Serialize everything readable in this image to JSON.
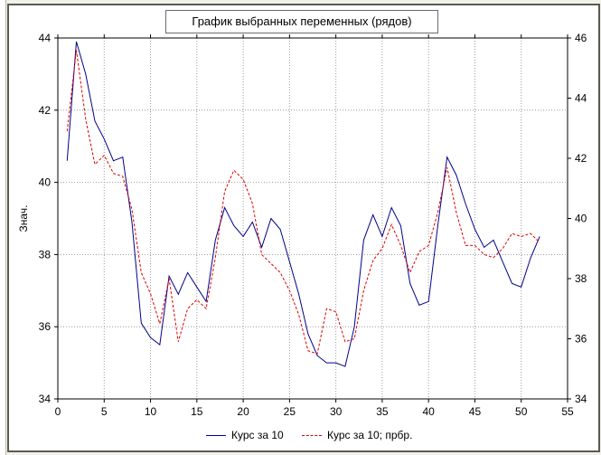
{
  "chart_data": {
    "type": "line",
    "title": "График выбранных переменных (рядов)",
    "ylabel": "Знач.",
    "xlabel": "",
    "xlim": [
      0,
      55
    ],
    "xticks": [
      0,
      5,
      10,
      15,
      20,
      25,
      30,
      35,
      40,
      45,
      50,
      55
    ],
    "ylim_left": [
      34,
      44
    ],
    "yticks_left": [
      34,
      36,
      38,
      40,
      42,
      44
    ],
    "ylim_right": [
      34,
      46
    ],
    "yticks_right": [
      34,
      36,
      38,
      40,
      42,
      44,
      46
    ],
    "grid": true,
    "legend_position": "bottom",
    "series": [
      {
        "name": "Курс за 10",
        "axis": "left",
        "color": "#00008b",
        "style": "solid",
        "x": [
          1,
          2,
          3,
          4,
          5,
          6,
          7,
          8,
          9,
          10,
          11,
          12,
          13,
          14,
          15,
          16,
          17,
          18,
          19,
          20,
          21,
          22,
          23,
          24,
          25,
          26,
          27,
          28,
          29,
          30,
          31,
          32,
          33,
          34,
          35,
          36,
          37,
          38,
          39,
          40,
          41,
          42,
          43,
          44,
          45,
          46,
          47,
          48,
          49,
          50,
          51,
          52
        ],
        "y": [
          40.6,
          43.9,
          43.0,
          41.7,
          41.2,
          40.6,
          40.7,
          38.9,
          36.1,
          35.7,
          35.5,
          37.4,
          36.9,
          37.5,
          37.1,
          36.7,
          38.4,
          39.3,
          38.8,
          38.5,
          38.9,
          38.2,
          39.0,
          38.7,
          37.8,
          36.9,
          35.8,
          35.2,
          35.0,
          35.0,
          34.9,
          36.0,
          38.4,
          39.1,
          38.5,
          39.3,
          38.8,
          37.2,
          36.6,
          36.7,
          38.8,
          40.7,
          40.2,
          39.4,
          38.7,
          38.2,
          38.4,
          37.8,
          37.2,
          37.1,
          37.9,
          38.5
        ]
      },
      {
        "name": "Курс за 10; прбр.",
        "axis": "right",
        "color": "#e00000",
        "style": "dashed",
        "x": [
          1,
          2,
          3,
          4,
          5,
          6,
          7,
          8,
          9,
          10,
          11,
          12,
          13,
          14,
          15,
          16,
          17,
          18,
          19,
          20,
          21,
          22,
          23,
          24,
          25,
          26,
          27,
          28,
          29,
          30,
          31,
          32,
          33,
          34,
          35,
          36,
          37,
          38,
          39,
          40,
          41,
          42,
          43,
          44,
          45,
          46,
          47,
          48,
          49,
          50,
          51,
          52
        ],
        "y": [
          42.9,
          45.6,
          43.3,
          41.8,
          42.1,
          41.5,
          41.4,
          40.3,
          38.2,
          37.5,
          36.5,
          38.0,
          35.9,
          37.0,
          37.3,
          37.0,
          38.7,
          40.9,
          41.6,
          41.3,
          40.5,
          38.8,
          38.5,
          38.2,
          37.6,
          36.8,
          35.6,
          35.5,
          37.0,
          36.9,
          35.9,
          36.0,
          37.6,
          38.6,
          39.0,
          39.8,
          39.1,
          38.2,
          38.9,
          39.1,
          40.2,
          41.7,
          40.2,
          39.1,
          39.1,
          38.8,
          38.7,
          39.0,
          39.5,
          39.4,
          39.5,
          39.2
        ]
      }
    ]
  }
}
